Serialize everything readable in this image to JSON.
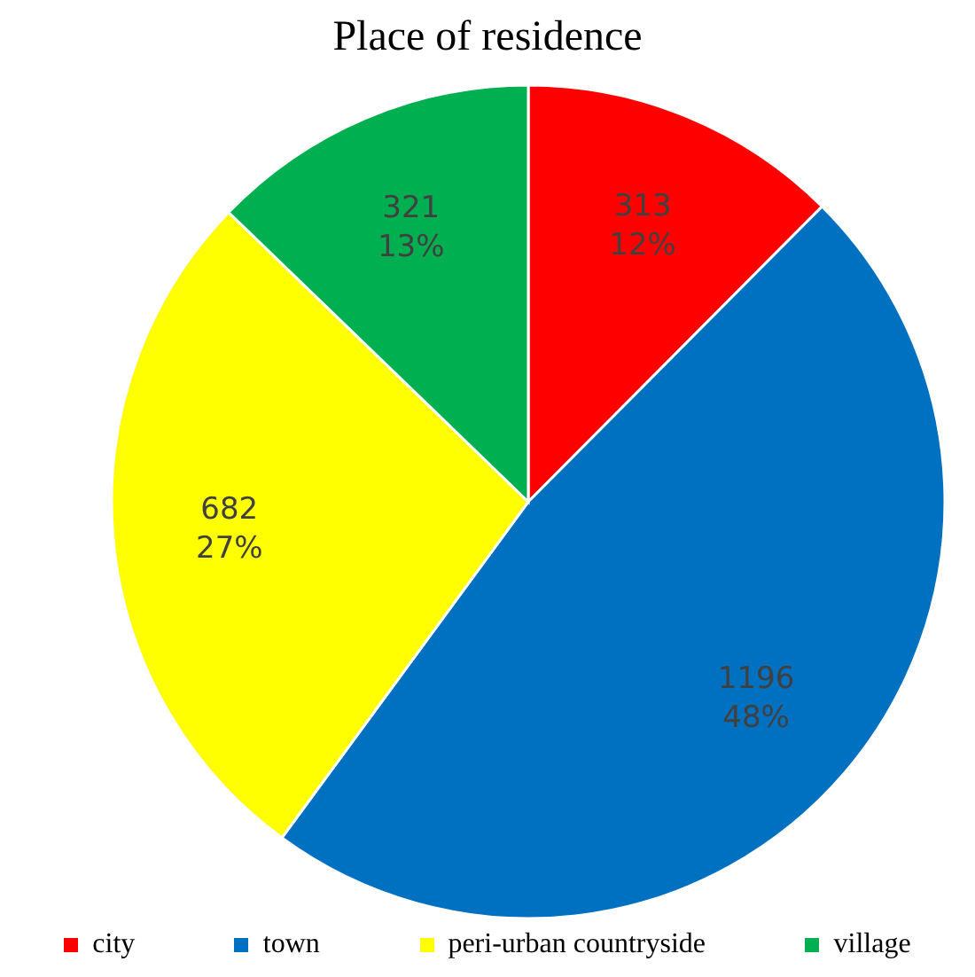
{
  "chart_data": {
    "type": "pie",
    "title": "Place of residence",
    "categories": [
      "city",
      "town",
      "peri-urban countryside",
      "village"
    ],
    "values": [
      313,
      1196,
      682,
      321
    ],
    "colors": [
      "#ff0000",
      "#0070c0",
      "#ffff00",
      "#00b050"
    ],
    "value_labels": [
      "313\n12%",
      "1196\n48%",
      "682\n27%",
      "321\n13%"
    ],
    "legend": "bottom"
  }
}
